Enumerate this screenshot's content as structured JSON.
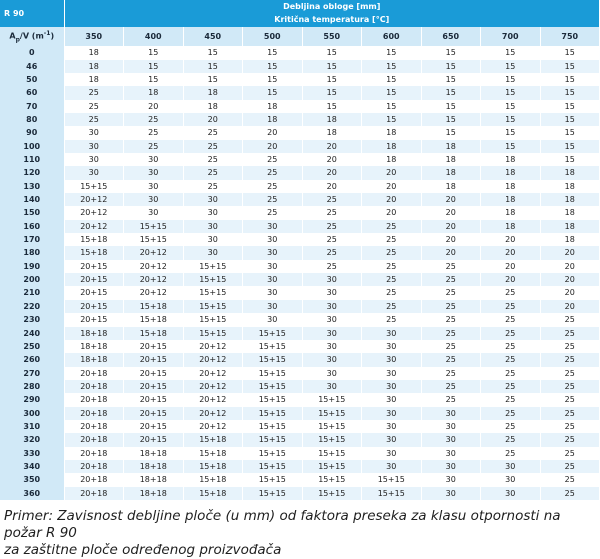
{
  "table": {
    "corner_label": "R 90",
    "thickness_header": "Debljina obloge [mm]",
    "temp_header": "Kritična temperatura [°C]",
    "row_header_label": "A",
    "row_header_sub_p": "p",
    "row_header_rest": "/V (m",
    "row_header_sup": "-1",
    "row_header_close": ")",
    "columns": [
      "350",
      "400",
      "450",
      "500",
      "550",
      "600",
      "650",
      "700",
      "750"
    ],
    "rows": [
      {
        "f": "0",
        "v": [
          "18",
          "15",
          "15",
          "15",
          "15",
          "15",
          "15",
          "15",
          "15"
        ]
      },
      {
        "f": "46",
        "v": [
          "18",
          "15",
          "15",
          "15",
          "15",
          "15",
          "15",
          "15",
          "15"
        ]
      },
      {
        "f": "50",
        "v": [
          "18",
          "15",
          "15",
          "15",
          "15",
          "15",
          "15",
          "15",
          "15"
        ]
      },
      {
        "f": "60",
        "v": [
          "25",
          "18",
          "18",
          "15",
          "15",
          "15",
          "15",
          "15",
          "15"
        ]
      },
      {
        "f": "70",
        "v": [
          "25",
          "20",
          "18",
          "18",
          "15",
          "15",
          "15",
          "15",
          "15"
        ]
      },
      {
        "f": "80",
        "v": [
          "25",
          "25",
          "20",
          "18",
          "18",
          "15",
          "15",
          "15",
          "15"
        ]
      },
      {
        "f": "90",
        "v": [
          "30",
          "25",
          "25",
          "20",
          "18",
          "18",
          "15",
          "15",
          "15"
        ]
      },
      {
        "f": "100",
        "v": [
          "30",
          "25",
          "25",
          "20",
          "20",
          "18",
          "18",
          "15",
          "15"
        ]
      },
      {
        "f": "110",
        "v": [
          "30",
          "30",
          "25",
          "25",
          "20",
          "18",
          "18",
          "18",
          "15"
        ]
      },
      {
        "f": "120",
        "v": [
          "30",
          "30",
          "25",
          "25",
          "20",
          "20",
          "18",
          "18",
          "18"
        ]
      },
      {
        "f": "130",
        "v": [
          "15+15",
          "30",
          "25",
          "25",
          "20",
          "20",
          "18",
          "18",
          "18"
        ]
      },
      {
        "f": "140",
        "v": [
          "20+12",
          "30",
          "30",
          "25",
          "25",
          "20",
          "20",
          "18",
          "18"
        ]
      },
      {
        "f": "150",
        "v": [
          "20+12",
          "30",
          "30",
          "25",
          "25",
          "20",
          "20",
          "18",
          "18"
        ]
      },
      {
        "f": "160",
        "v": [
          "20+12",
          "15+15",
          "30",
          "30",
          "25",
          "25",
          "20",
          "18",
          "18"
        ]
      },
      {
        "f": "170",
        "v": [
          "15+18",
          "15+15",
          "30",
          "30",
          "25",
          "25",
          "20",
          "20",
          "18"
        ]
      },
      {
        "f": "180",
        "v": [
          "15+18",
          "20+12",
          "30",
          "30",
          "25",
          "25",
          "20",
          "20",
          "20"
        ]
      },
      {
        "f": "190",
        "v": [
          "20+15",
          "20+12",
          "15+15",
          "30",
          "25",
          "25",
          "25",
          "20",
          "20"
        ]
      },
      {
        "f": "200",
        "v": [
          "20+15",
          "20+12",
          "15+15",
          "30",
          "30",
          "25",
          "25",
          "20",
          "20"
        ]
      },
      {
        "f": "210",
        "v": [
          "20+15",
          "20+12",
          "15+15",
          "30",
          "30",
          "25",
          "25",
          "25",
          "20"
        ]
      },
      {
        "f": "220",
        "v": [
          "20+15",
          "15+18",
          "15+15",
          "30",
          "30",
          "25",
          "25",
          "25",
          "20"
        ]
      },
      {
        "f": "230",
        "v": [
          "20+15",
          "15+18",
          "15+15",
          "30",
          "30",
          "25",
          "25",
          "25",
          "25"
        ]
      },
      {
        "f": "240",
        "v": [
          "18+18",
          "15+18",
          "15+15",
          "15+15",
          "30",
          "30",
          "25",
          "25",
          "25"
        ]
      },
      {
        "f": "250",
        "v": [
          "18+18",
          "20+15",
          "20+12",
          "15+15",
          "30",
          "30",
          "25",
          "25",
          "25"
        ]
      },
      {
        "f": "260",
        "v": [
          "18+18",
          "20+15",
          "20+12",
          "15+15",
          "30",
          "30",
          "25",
          "25",
          "25"
        ]
      },
      {
        "f": "270",
        "v": [
          "20+18",
          "20+15",
          "20+12",
          "15+15",
          "30",
          "30",
          "25",
          "25",
          "25"
        ]
      },
      {
        "f": "280",
        "v": [
          "20+18",
          "20+15",
          "20+12",
          "15+15",
          "30",
          "30",
          "25",
          "25",
          "25"
        ]
      },
      {
        "f": "290",
        "v": [
          "20+18",
          "20+15",
          "20+12",
          "15+15",
          "15+15",
          "30",
          "25",
          "25",
          "25"
        ]
      },
      {
        "f": "300",
        "v": [
          "20+18",
          "20+15",
          "20+12",
          "15+15",
          "15+15",
          "30",
          "30",
          "25",
          "25"
        ]
      },
      {
        "f": "310",
        "v": [
          "20+18",
          "20+15",
          "20+12",
          "15+15",
          "15+15",
          "30",
          "30",
          "25",
          "25"
        ]
      },
      {
        "f": "320",
        "v": [
          "20+18",
          "20+15",
          "15+18",
          "15+15",
          "15+15",
          "30",
          "30",
          "25",
          "25"
        ]
      },
      {
        "f": "330",
        "v": [
          "20+18",
          "18+18",
          "15+18",
          "15+15",
          "15+15",
          "30",
          "30",
          "25",
          "25"
        ]
      },
      {
        "f": "340",
        "v": [
          "20+18",
          "18+18",
          "15+18",
          "15+15",
          "15+15",
          "30",
          "30",
          "30",
          "25"
        ]
      },
      {
        "f": "350",
        "v": [
          "20+18",
          "18+18",
          "15+18",
          "15+15",
          "15+15",
          "15+15",
          "30",
          "30",
          "25"
        ]
      },
      {
        "f": "360",
        "v": [
          "20+18",
          "18+18",
          "15+18",
          "15+15",
          "15+15",
          "15+15",
          "30",
          "30",
          "25"
        ]
      }
    ]
  },
  "caption": {
    "line1": "Primer: Zavisnost debljine ploče (u mm) od faktora preseka za klasu otpornosti na požar R 90",
    "line2": "za zaštitne ploče određenog proizvođača"
  }
}
